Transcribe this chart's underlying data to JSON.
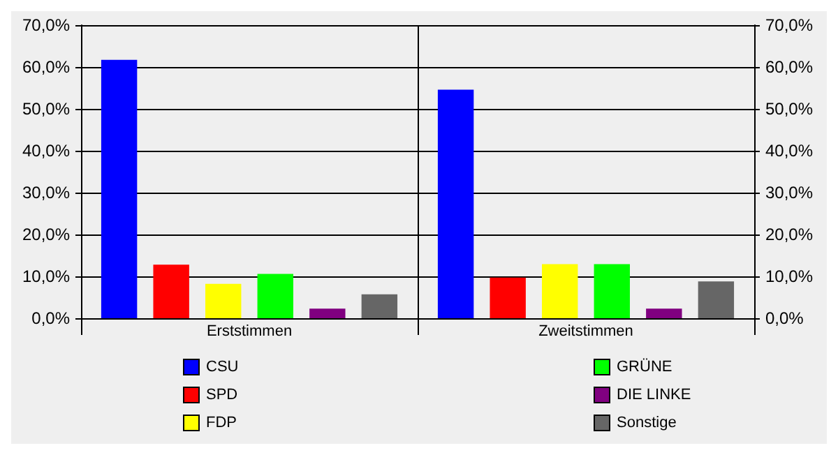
{
  "chart_data": {
    "type": "bar",
    "categories": [
      "Erststimmen",
      "Zweitstimmen"
    ],
    "series": [
      {
        "name": "CSU",
        "color": "#0000ff",
        "values": [
          61.7,
          54.6
        ]
      },
      {
        "name": "SPD",
        "color": "#ff0000",
        "values": [
          12.8,
          9.7
        ]
      },
      {
        "name": "FDP",
        "color": "#ffff00",
        "values": [
          8.2,
          12.9
        ]
      },
      {
        "name": "GRÜNE",
        "color": "#00ff00",
        "values": [
          10.6,
          12.9
        ]
      },
      {
        "name": "DIE LINKE",
        "color": "#800080",
        "values": [
          2.3,
          2.3
        ]
      },
      {
        "name": "Sonstige",
        "color": "#666666",
        "values": [
          5.7,
          8.8
        ]
      }
    ],
    "ylim": [
      0,
      70
    ],
    "yticks": [
      {
        "value": 0,
        "label": "0,0%"
      },
      {
        "value": 10,
        "label": "10,0%"
      },
      {
        "value": 20,
        "label": "20,0%"
      },
      {
        "value": 30,
        "label": "30,0%"
      },
      {
        "value": 40,
        "label": "40,0%"
      },
      {
        "value": 50,
        "label": "50,0%"
      },
      {
        "value": 60,
        "label": "60,0%"
      },
      {
        "value": 70,
        "label": "70,0%"
      }
    ],
    "y2lim": [
      0,
      70
    ],
    "y2ticks": [
      {
        "value": 0,
        "label": "0,0%"
      },
      {
        "value": 10,
        "label": "10,0%"
      },
      {
        "value": 20,
        "label": "20,0%"
      },
      {
        "value": 30,
        "label": "30,0%"
      },
      {
        "value": 40,
        "label": "40,0%"
      },
      {
        "value": 50,
        "label": "50,0%"
      },
      {
        "value": 60,
        "label": "60,0%"
      },
      {
        "value": 70,
        "label": "70,0%"
      }
    ],
    "grid": "y",
    "legend": "bottom"
  }
}
